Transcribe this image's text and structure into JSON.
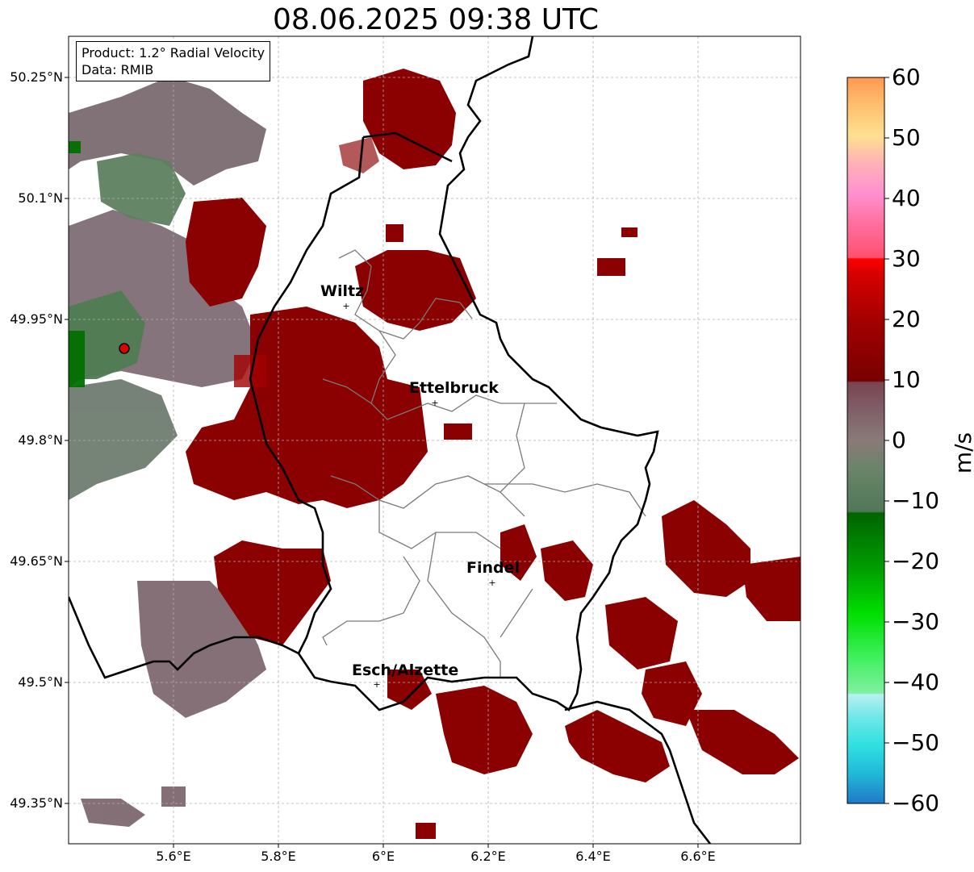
{
  "title": "08.06.2025 09:38 UTC",
  "info": {
    "product": "Product: 1.2° Radial Velocity",
    "data": "Data: RMIB"
  },
  "latitude_labels": [
    "50.25°N",
    "50.1°N",
    "49.95°N",
    "49.8°N",
    "49.65°N",
    "49.5°N",
    "49.35°N"
  ],
  "longitude_labels": [
    "5.6°E",
    "5.8°E",
    "6°E",
    "6.2°E",
    "6.4°E",
    "6.6°E"
  ],
  "cities": [
    {
      "name": "Wiltz",
      "lon": 5.93,
      "lat": 49.967
    },
    {
      "name": "Ettelbruck",
      "lon": 6.104,
      "lat": 49.847
    },
    {
      "name": "Findel",
      "lon": 6.21,
      "lat": 49.625
    },
    {
      "name": "Esch/Alzette",
      "lon": 5.99,
      "lat": 49.496
    }
  ],
  "radar_site": {
    "lon": 5.505,
    "lat": 49.915
  },
  "colorbar": {
    "unit": "m/s",
    "min": -60,
    "max": 60,
    "ticks": [
      "60",
      "50",
      "40",
      "30",
      "20",
      "10",
      "0",
      "−10",
      "−20",
      "−30",
      "−40",
      "−50",
      "−60"
    ],
    "colors": {
      "strong_receding": "#8b0000",
      "near_zero_pos": "#8a6070",
      "near_zero_neg": "#5e8060",
      "approaching": "#007000"
    }
  },
  "map_extent": {
    "lon": [
      5.4,
      6.8
    ],
    "lat": [
      49.3,
      50.3
    ]
  }
}
